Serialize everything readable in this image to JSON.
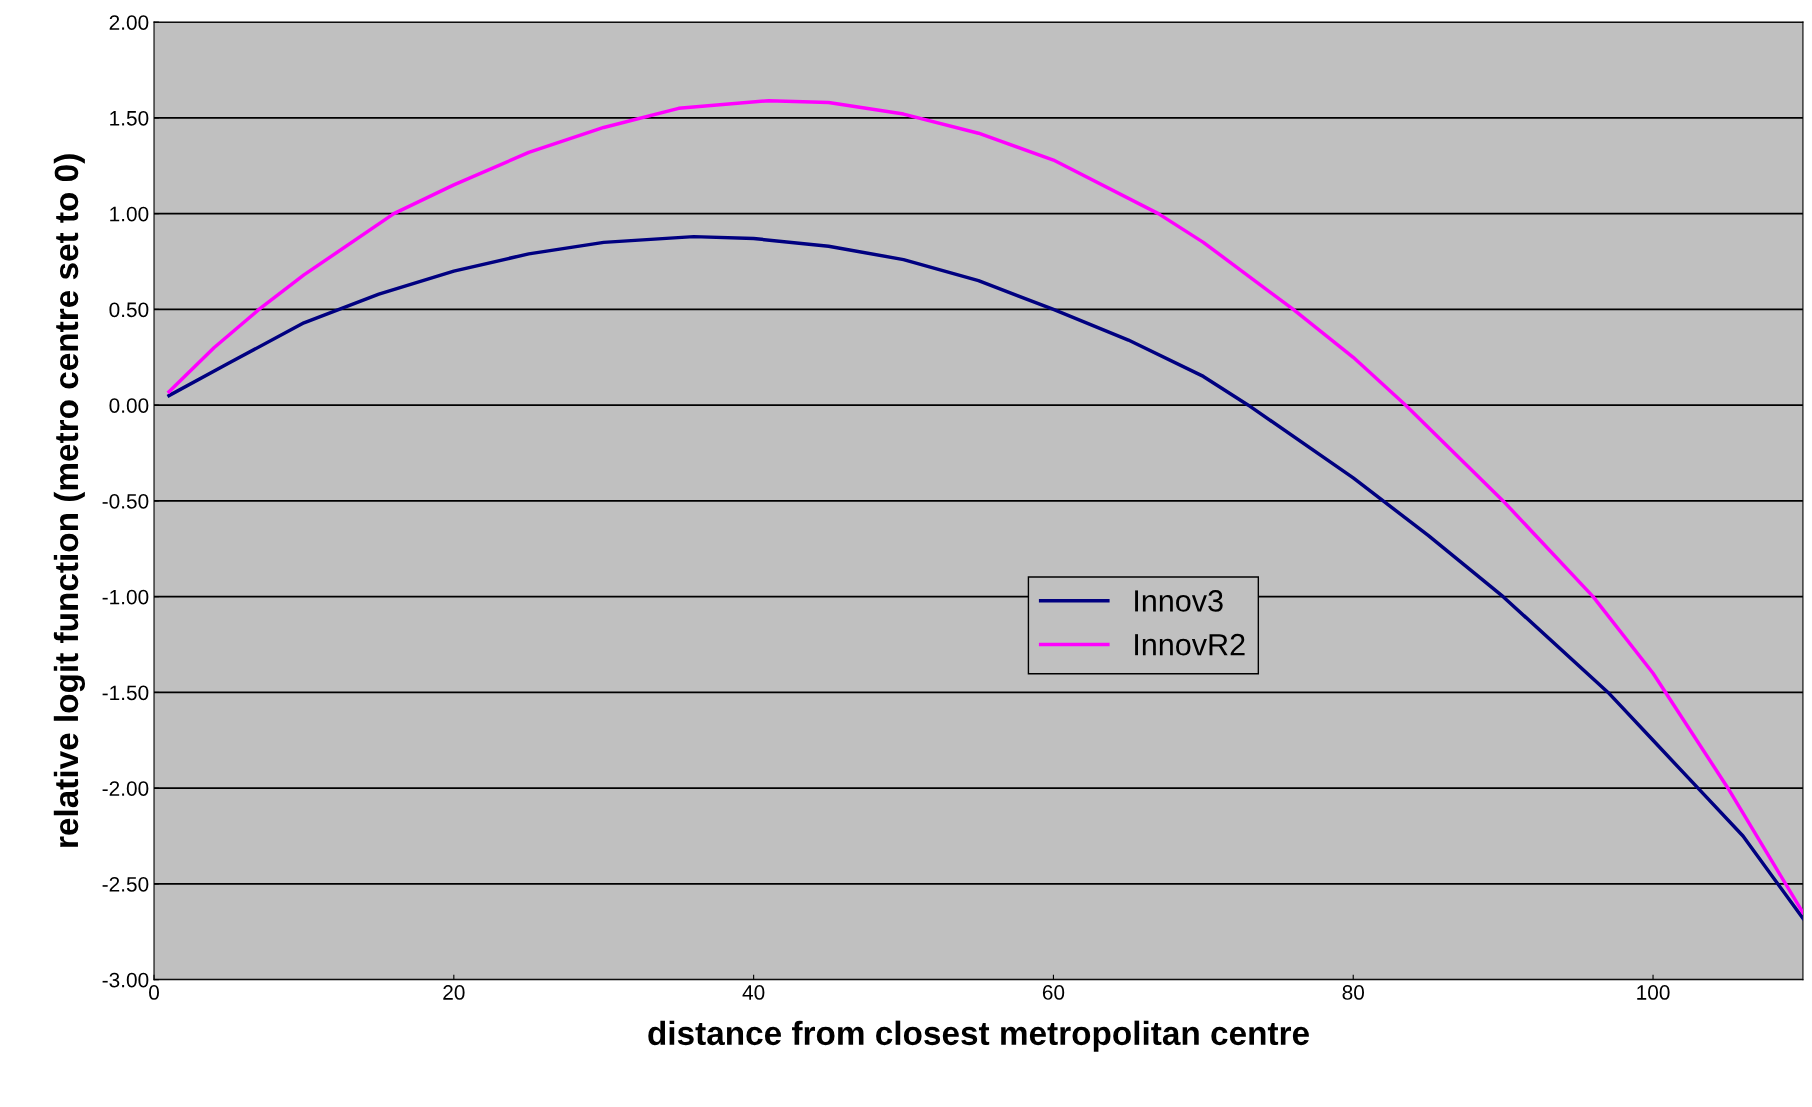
{
  "chart_data": {
    "type": "line",
    "xlabel": "distance from closest metropolitan centre",
    "ylabel": "relative logit function (metro centre set to 0)",
    "series": [
      {
        "name": "Innov3",
        "color": "#000080",
        "x": [
          1,
          5,
          10,
          15,
          20,
          25,
          30,
          36,
          40,
          45,
          50,
          55,
          60,
          65,
          70,
          73,
          80,
          85,
          90,
          97,
          100,
          103,
          106,
          110
        ],
        "values": [
          0.05,
          0.22,
          0.43,
          0.58,
          0.7,
          0.79,
          0.85,
          0.88,
          0.87,
          0.83,
          0.76,
          0.65,
          0.5,
          0.34,
          0.15,
          0.0,
          -0.38,
          -0.68,
          -1.0,
          -1.5,
          -1.75,
          -2.0,
          -2.25,
          -2.68
        ]
      },
      {
        "name": "InnovR2",
        "color": "#ff00ff",
        "x": [
          1,
          4,
          7,
          10,
          16,
          20,
          25,
          30,
          35,
          41,
          45,
          50,
          55,
          60,
          67,
          70,
          76,
          80,
          83.5,
          90,
          96,
          100,
          105,
          110
        ],
        "values": [
          0.07,
          0.3,
          0.5,
          0.68,
          1.0,
          1.15,
          1.32,
          1.45,
          1.55,
          1.59,
          1.58,
          1.52,
          1.42,
          1.28,
          1.0,
          0.85,
          0.5,
          0.25,
          0.0,
          -0.5,
          -1.0,
          -1.4,
          -2.0,
          -2.65
        ]
      }
    ],
    "xlim": [
      0,
      110
    ],
    "xticks": [
      0,
      20,
      40,
      60,
      80,
      100
    ],
    "ylim": [
      -3,
      2
    ],
    "yticks": [
      {
        "value": -3,
        "label": "-3.00"
      },
      {
        "value": -2.5,
        "label": "-2.50"
      },
      {
        "value": -2,
        "label": "-2.00"
      },
      {
        "value": -1.5,
        "label": "-1.50"
      },
      {
        "value": -1,
        "label": "-1.00"
      },
      {
        "value": -0.5,
        "label": "-0.50"
      },
      {
        "value": 0,
        "label": "0.00"
      },
      {
        "value": 0.5,
        "label": "0.50"
      },
      {
        "value": 1,
        "label": "1.00"
      },
      {
        "value": 1.5,
        "label": "1.50"
      },
      {
        "value": 2,
        "label": "2.00"
      }
    ],
    "grid": "y",
    "legend": "center",
    "marker": "none",
    "line_style": "solid"
  }
}
